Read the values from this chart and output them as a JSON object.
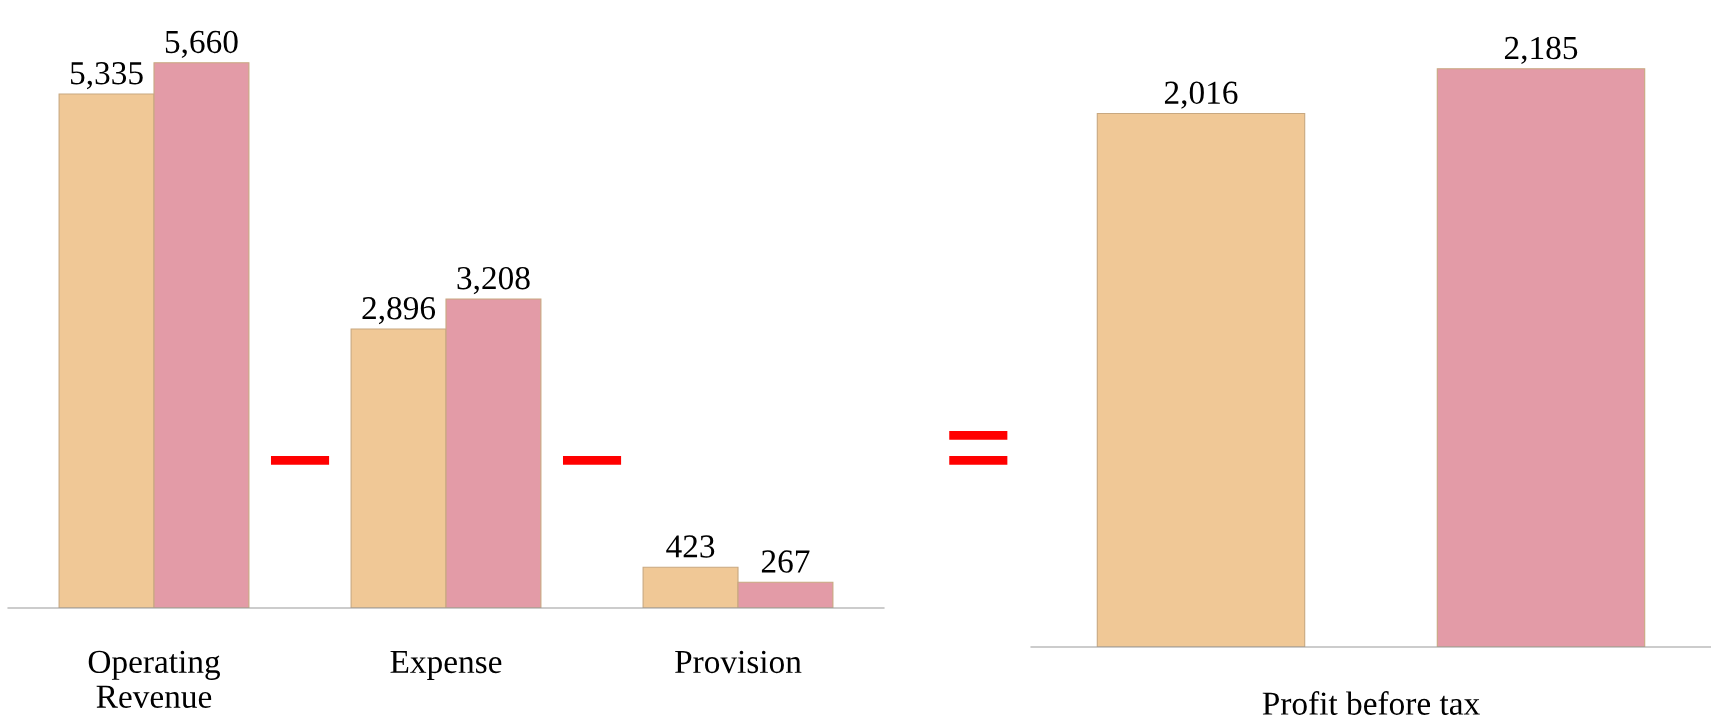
{
  "chart_data": [
    {
      "type": "bar",
      "categories": [
        "Operating\nRevenue",
        "Expense",
        "Provision"
      ],
      "series": [
        {
          "color": "#f0c896",
          "values": [
            5335,
            2896,
            423
          ],
          "value_labels": [
            "5,335",
            "2,896",
            "423"
          ]
        },
        {
          "color": "#e39ba7",
          "values": [
            5660,
            3208,
            267
          ],
          "value_labels": [
            "5,660",
            "3,208",
            "267"
          ]
        }
      ],
      "tick_labels": "x",
      "grid": false,
      "legend": false,
      "annotations": [
        "−",
        "−"
      ]
    },
    {
      "type": "bar",
      "categories": [
        null,
        null
      ],
      "xlabel": "Profit before tax",
      "values": [
        2016,
        2185
      ],
      "colors": [
        "#f0c896",
        "#e39ba7"
      ],
      "value_labels": [
        "2,016",
        "2,185"
      ],
      "tick_labels": "x",
      "grid": false,
      "legend": false,
      "annotations": [
        "="
      ]
    }
  ]
}
